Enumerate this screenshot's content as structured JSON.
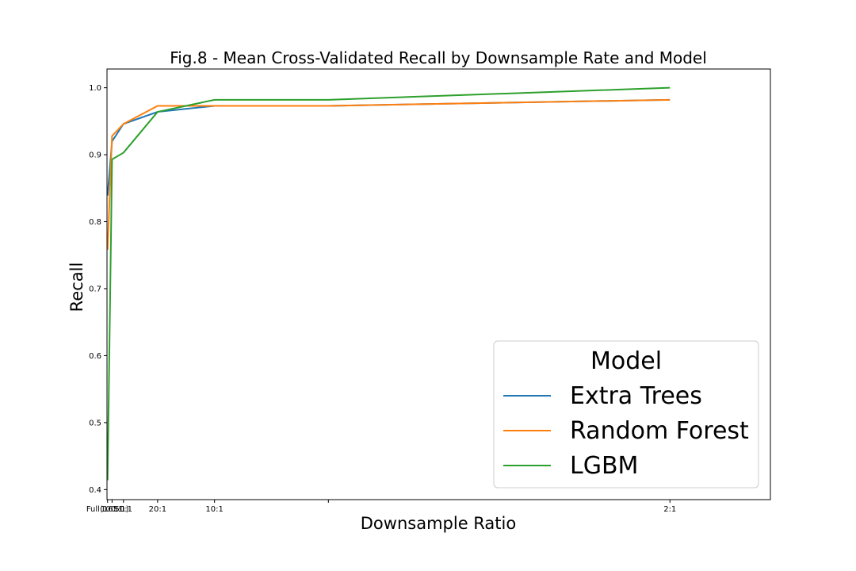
{
  "chart_data": {
    "type": "line",
    "title": "Fig.8 - Mean Cross-Validated Recall by Downsample Rate and Model",
    "xlabel": "Downsample Ratio",
    "ylabel": "Recall",
    "x_scale": "reciprocal (ratio labels)",
    "x": [
      165,
      100,
      50,
      20,
      10,
      5,
      2
    ],
    "x_tick_values": [
      165,
      100,
      50,
      20,
      10,
      2
    ],
    "x_tick_labels": [
      "Full(165:1)",
      "100:1",
      "50:1",
      "20:1",
      "10:1",
      "2:1"
    ],
    "x_tick_unlabeled": [
      5
    ],
    "y_ticks": [
      0.4,
      0.5,
      0.6,
      0.7,
      0.8,
      0.9,
      1.0
    ],
    "y_tick_labels": [
      "0.4",
      "0.5",
      "0.6",
      "0.7",
      "0.8",
      "0.9",
      "1.0"
    ],
    "ylim": [
      0.385,
      1.028
    ],
    "grid": false,
    "legend": {
      "title": "Model",
      "position": "lower-right"
    },
    "series": [
      {
        "name": "Extra Trees",
        "color": "#1f77b4",
        "values": [
          0.839,
          0.92,
          0.946,
          0.964,
          0.973,
          0.973,
          0.982
        ]
      },
      {
        "name": "Random Forest",
        "color": "#ff7f0e",
        "values": [
          0.758,
          0.928,
          0.946,
          0.973,
          0.973,
          0.973,
          0.982
        ]
      },
      {
        "name": "LGBM",
        "color": "#2ca02c",
        "values": [
          0.414,
          0.893,
          0.903,
          0.964,
          0.982,
          0.982,
          1.0
        ]
      }
    ]
  }
}
